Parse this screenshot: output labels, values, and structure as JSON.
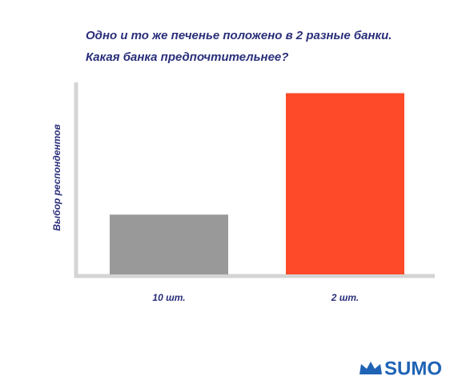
{
  "chart_data": {
    "type": "bar",
    "title": [
      "Одно и то же печенье положено в 2 разные банки.",
      "Какая банка предпочтительнее?"
    ],
    "y_label": "Выбор респондентов",
    "categories": [
      "10 шт.",
      "2 шт."
    ],
    "values": [
      31,
      94
    ],
    "colors": [
      "#999999",
      "#ff4a2a"
    ],
    "ylim": [
      0,
      100
    ],
    "logo": "SUMO"
  }
}
